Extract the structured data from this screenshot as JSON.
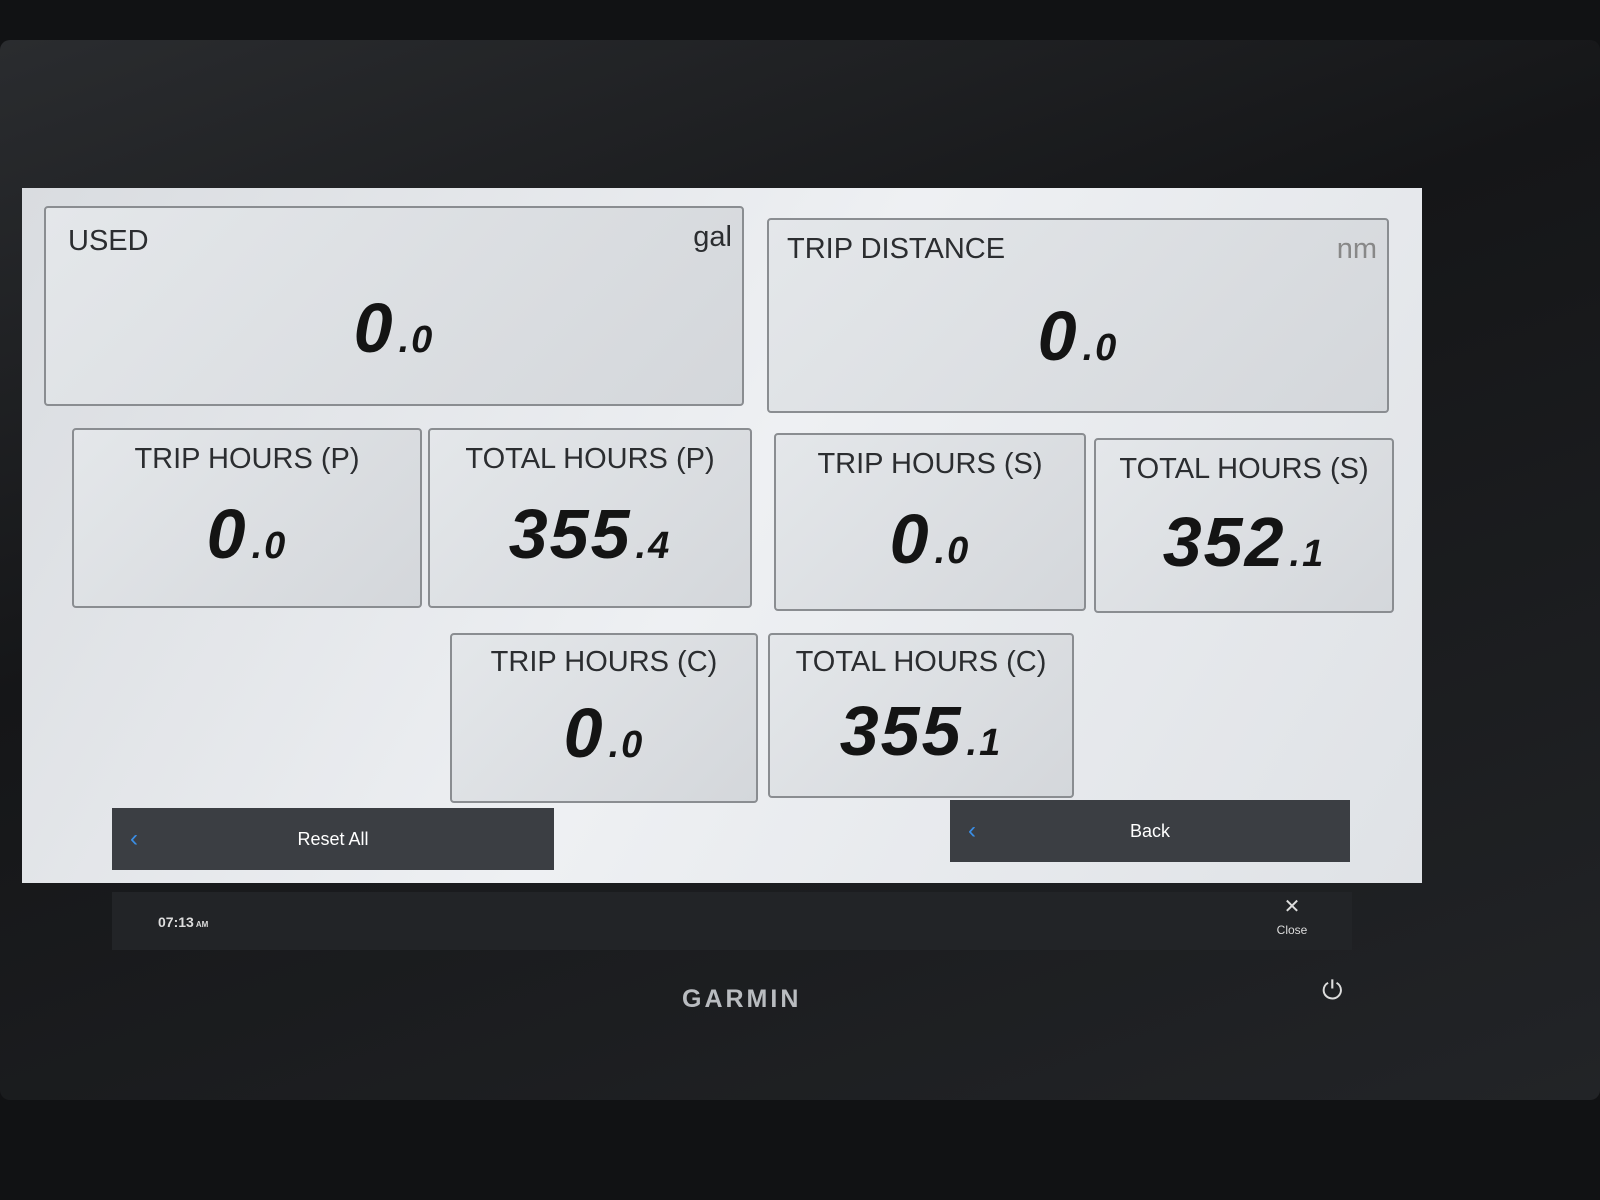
{
  "tiles": {
    "used": {
      "label": "USED",
      "unit": "gal",
      "value": "0",
      "decimal": ".0"
    },
    "trip_distance": {
      "label": "TRIP DISTANCE",
      "unit": "nm",
      "value": "0",
      "decimal": ".0"
    },
    "trip_hours_p": {
      "label": "TRIP HOURS (P)",
      "value": "0",
      "decimal": ".0"
    },
    "total_hours_p": {
      "label": "TOTAL HOURS (P)",
      "value": "355",
      "decimal": ".4"
    },
    "trip_hours_s": {
      "label": "TRIP HOURS (S)",
      "value": "0",
      "decimal": ".0"
    },
    "total_hours_s": {
      "label": "TOTAL HOURS (S)",
      "value": "352",
      "decimal": ".1"
    },
    "trip_hours_c": {
      "label": "TRIP HOURS (C)",
      "value": "0",
      "decimal": ".0"
    },
    "total_hours_c": {
      "label": "TOTAL HOURS (C)",
      "value": "355",
      "decimal": ".1"
    }
  },
  "buttons": {
    "reset_all": "Reset All",
    "back": "Back",
    "close": "Close"
  },
  "status": {
    "time": "07:13",
    "ampm": "AM"
  },
  "brand": "GARMIN",
  "icons": {
    "chevron": "chevron-left-icon",
    "close": "close-icon",
    "power": "power-icon"
  },
  "colors": {
    "accent": "#3a8ee6",
    "button_bg": "#3b3e43"
  }
}
